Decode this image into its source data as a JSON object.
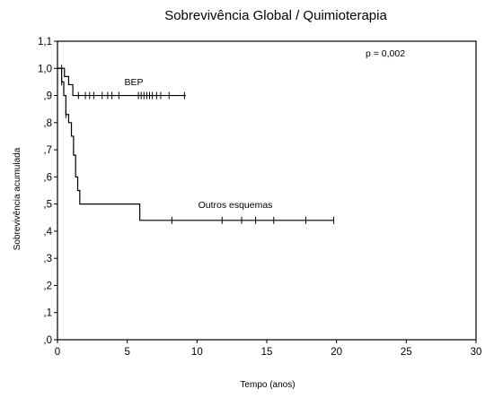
{
  "chart_data": {
    "type": "line",
    "subtype": "kaplan-meier-step",
    "title": "Sobrevivência Global / Quimioterapia",
    "xlabel": "Tempo (anos)",
    "ylabel": "Sobrevivência acumulada",
    "xlim": [
      0,
      30
    ],
    "ylim": [
      0,
      1.1
    ],
    "x_ticks": [
      0,
      5,
      10,
      15,
      20,
      25,
      30
    ],
    "x_tick_labels": [
      "0",
      "5",
      "10",
      "15",
      "20",
      "25",
      "30"
    ],
    "y_ticks": [
      0,
      0.1,
      0.2,
      0.3,
      0.4,
      0.5,
      0.6,
      0.7,
      0.8,
      0.9,
      1.0,
      1.1
    ],
    "y_tick_labels": [
      ",0",
      ",1",
      ",2",
      ",3",
      ",4",
      ",5",
      ",6",
      ",7",
      ",8",
      ",9",
      "1,0",
      "1,1"
    ],
    "grid": false,
    "annotation": "p = 0,002",
    "series": [
      {
        "name": "BEP",
        "color": "#000000",
        "steps": [
          [
            0,
            1.0
          ],
          [
            0.5,
            0.97
          ],
          [
            0.8,
            0.94
          ],
          [
            1.1,
            0.9
          ],
          [
            9.2,
            0.9
          ]
        ],
        "censored_x": [
          0.3,
          1.5,
          2.0,
          2.3,
          2.6,
          3.2,
          3.6,
          3.9,
          4.4,
          5.8,
          6.0,
          6.2,
          6.4,
          6.6,
          6.8,
          7.1,
          7.4,
          8.0,
          9.1
        ]
      },
      {
        "name": "Outros esquemas",
        "color": "#000000",
        "steps": [
          [
            0,
            1.0
          ],
          [
            0.3,
            0.95
          ],
          [
            0.45,
            0.9
          ],
          [
            0.6,
            0.83
          ],
          [
            0.8,
            0.8
          ],
          [
            1.0,
            0.75
          ],
          [
            1.15,
            0.68
          ],
          [
            1.3,
            0.6
          ],
          [
            1.45,
            0.55
          ],
          [
            1.6,
            0.5
          ],
          [
            5.9,
            0.5
          ],
          [
            5.9,
            0.44
          ],
          [
            19.8,
            0.44
          ]
        ],
        "censored_x": [
          0.3,
          0.6,
          8.2,
          11.8,
          13.2,
          14.2,
          15.5,
          17.8,
          19.8
        ]
      }
    ]
  }
}
